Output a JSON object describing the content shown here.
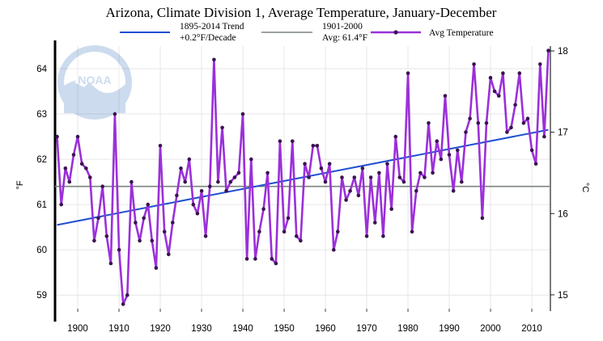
{
  "chart_data": {
    "type": "line",
    "title": "Arizona, Climate Division 1, Average Temperature, January-December",
    "xlabel": "",
    "ylabel": "°F",
    "y2label": "°C",
    "xlim": [
      1894.5,
      2014.5
    ],
    "ylim": [
      58.7,
      64.5
    ],
    "y2lim": [
      14.83,
      18.06
    ],
    "x_ticks": [
      1900,
      1910,
      1920,
      1930,
      1940,
      1950,
      1960,
      1970,
      1980,
      1990,
      2000,
      2010
    ],
    "y_ticks": [
      59,
      60,
      61,
      62,
      63,
      64
    ],
    "y2_ticks": [
      15,
      16,
      17,
      18
    ],
    "legend": {
      "trend_label_line1": "1895-2014 Trend",
      "trend_label_line2": "+0.2°F/Decade",
      "average_label_line1": "1901-2000",
      "average_label_line2": "Avg: 61.4°F",
      "series_label": "Avg Temperature"
    },
    "colors": {
      "series": "#9b30d9",
      "trend": "#1f4fd1",
      "average": "#7a857e",
      "marker": "#3a1450",
      "grid": "#e6e6e6"
    },
    "watermark": "NOAA",
    "trend": {
      "x": [
        1895,
        2014
      ],
      "y": [
        60.55,
        62.65
      ]
    },
    "average": 61.4,
    "series": [
      {
        "name": "Avg Temperature",
        "x": [
          1895,
          1896,
          1897,
          1898,
          1899,
          1900,
          1901,
          1902,
          1903,
          1904,
          1905,
          1906,
          1907,
          1908,
          1909,
          1910,
          1911,
          1912,
          1913,
          1914,
          1915,
          1916,
          1917,
          1918,
          1919,
          1920,
          1921,
          1922,
          1923,
          1924,
          1925,
          1926,
          1927,
          1928,
          1929,
          1930,
          1931,
          1932,
          1933,
          1934,
          1935,
          1936,
          1937,
          1938,
          1939,
          1940,
          1941,
          1942,
          1943,
          1944,
          1945,
          1946,
          1947,
          1948,
          1949,
          1950,
          1951,
          1952,
          1953,
          1954,
          1955,
          1956,
          1957,
          1958,
          1959,
          1960,
          1961,
          1962,
          1963,
          1964,
          1965,
          1966,
          1967,
          1968,
          1969,
          1970,
          1971,
          1972,
          1973,
          1974,
          1975,
          1976,
          1977,
          1978,
          1979,
          1980,
          1981,
          1982,
          1983,
          1984,
          1985,
          1986,
          1987,
          1988,
          1989,
          1990,
          1991,
          1992,
          1993,
          1994,
          1995,
          1996,
          1997,
          1998,
          1999,
          2000,
          2001,
          2002,
          2003,
          2004,
          2005,
          2006,
          2007,
          2008,
          2009,
          2010,
          2011,
          2012,
          2013,
          2014
        ],
        "y": [
          62.5,
          61.0,
          61.8,
          61.5,
          62.1,
          62.5,
          61.9,
          61.8,
          61.6,
          60.2,
          60.7,
          61.4,
          60.3,
          59.7,
          63.0,
          60.0,
          58.8,
          59.0,
          61.5,
          60.6,
          60.2,
          60.7,
          61.0,
          60.2,
          59.6,
          62.3,
          60.4,
          59.9,
          60.6,
          61.2,
          61.8,
          61.5,
          62.0,
          61.0,
          60.8,
          61.3,
          60.3,
          61.4,
          64.2,
          61.5,
          62.7,
          61.3,
          61.5,
          61.6,
          61.7,
          63.0,
          59.8,
          62.0,
          59.8,
          60.4,
          60.9,
          61.7,
          59.8,
          59.7,
          62.4,
          60.4,
          60.7,
          62.4,
          60.3,
          60.2,
          61.9,
          61.6,
          62.3,
          62.3,
          61.8,
          61.5,
          61.9,
          60.0,
          60.4,
          61.6,
          61.1,
          61.3,
          61.6,
          61.2,
          61.8,
          60.3,
          61.6,
          60.6,
          61.7,
          60.3,
          61.9,
          60.9,
          62.5,
          61.6,
          61.5,
          63.9,
          60.4,
          61.3,
          61.7,
          61.6,
          62.8,
          61.7,
          62.4,
          62.0,
          63.4,
          62.1,
          61.3,
          62.2,
          61.5,
          62.6,
          62.9,
          64.1,
          62.8,
          60.7,
          62.8,
          63.8,
          63.5,
          63.4,
          63.9,
          62.6,
          62.7,
          63.2,
          63.9,
          62.8,
          62.9,
          62.2,
          61.9,
          64.1,
          62.5,
          64.4
        ]
      }
    ]
  }
}
